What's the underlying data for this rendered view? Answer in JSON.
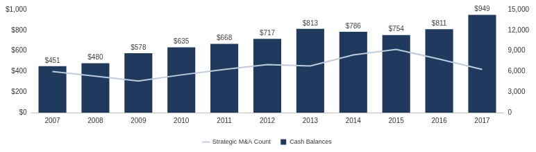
{
  "chart_data": {
    "type": "bar",
    "categories": [
      "2007",
      "2008",
      "2009",
      "2010",
      "2011",
      "2012",
      "2013",
      "2014",
      "2015",
      "2016",
      "2017"
    ],
    "series": [
      {
        "name": "Cash Balances",
        "type": "bar",
        "color": "#203a5e",
        "values": [
          451,
          480,
          578,
          635,
          668,
          717,
          813,
          786,
          754,
          811,
          949
        ],
        "value_labels": [
          "$451",
          "$480",
          "$578",
          "$635",
          "$668",
          "$717",
          "$813",
          "$786",
          "$754",
          "$811",
          "$949"
        ],
        "data_labels": true
      },
      {
        "name": "Strategic M&A Count",
        "type": "line",
        "axis": "y2",
        "color": "#bccbdd",
        "values": [
          6000,
          5300,
          4600,
          5500,
          6300,
          7000,
          6800,
          8400,
          9200,
          7800,
          6300
        ]
      }
    ],
    "ylim": [
      0,
      1000
    ],
    "yticks": [
      {
        "value": 0,
        "label": "$0"
      },
      {
        "value": 200,
        "label": "$200"
      },
      {
        "value": 400,
        "label": "$400"
      },
      {
        "value": 600,
        "label": "$600"
      },
      {
        "value": 800,
        "label": "$800"
      },
      {
        "value": 1000,
        "label": "$1,000"
      }
    ],
    "y2lim": [
      0,
      15000
    ],
    "y2ticks": [
      0,
      {
        "value": 3000,
        "label": "3,000"
      },
      {
        "value": 6000,
        "label": "6,000"
      },
      {
        "value": 9000,
        "label": "9,000"
      },
      {
        "value": 12000,
        "label": "12,000"
      },
      {
        "value": 15000,
        "label": "15,000"
      }
    ],
    "grid": false,
    "legend": "bottom"
  }
}
